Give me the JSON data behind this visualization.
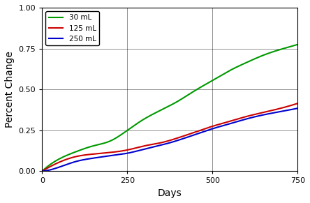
{
  "title": "",
  "xlabel": "Days",
  "ylabel": "Percent Change",
  "xlim": [
    0,
    750
  ],
  "ylim": [
    0.0,
    1.0
  ],
  "xticks": [
    0,
    250,
    500,
    750
  ],
  "yticks": [
    0.0,
    0.25,
    0.5,
    0.75,
    1.0
  ],
  "series": [
    {
      "label": "30 mL",
      "color": "#009900",
      "points_x": [
        0,
        50,
        100,
        150,
        200,
        250,
        300,
        350,
        400,
        450,
        500,
        550,
        600,
        650,
        700,
        750
      ],
      "points_y": [
        0.0,
        0.075,
        0.12,
        0.155,
        0.185,
        0.25,
        0.32,
        0.375,
        0.43,
        0.495,
        0.555,
        0.615,
        0.665,
        0.71,
        0.745,
        0.775
      ]
    },
    {
      "label": "125 mL",
      "color": "#cc0000",
      "points_x": [
        0,
        50,
        100,
        150,
        200,
        250,
        300,
        350,
        400,
        450,
        500,
        550,
        600,
        650,
        700,
        750
      ],
      "points_y": [
        0.0,
        0.055,
        0.09,
        0.105,
        0.115,
        0.13,
        0.155,
        0.175,
        0.205,
        0.24,
        0.275,
        0.305,
        0.335,
        0.36,
        0.385,
        0.415
      ]
    },
    {
      "label": "250 mL",
      "color": "#0000cc",
      "points_x": [
        0,
        50,
        100,
        150,
        200,
        250,
        300,
        350,
        400,
        450,
        500,
        550,
        600,
        650,
        700,
        750
      ],
      "points_y": [
        0.0,
        0.025,
        0.06,
        0.08,
        0.095,
        0.11,
        0.135,
        0.16,
        0.19,
        0.225,
        0.26,
        0.29,
        0.32,
        0.345,
        0.365,
        0.385
      ]
    }
  ],
  "legend_loc": "upper left",
  "grid": true,
  "background_color": "#ffffff",
  "linewidth": 1.5,
  "font_family": "DejaVu Sans"
}
